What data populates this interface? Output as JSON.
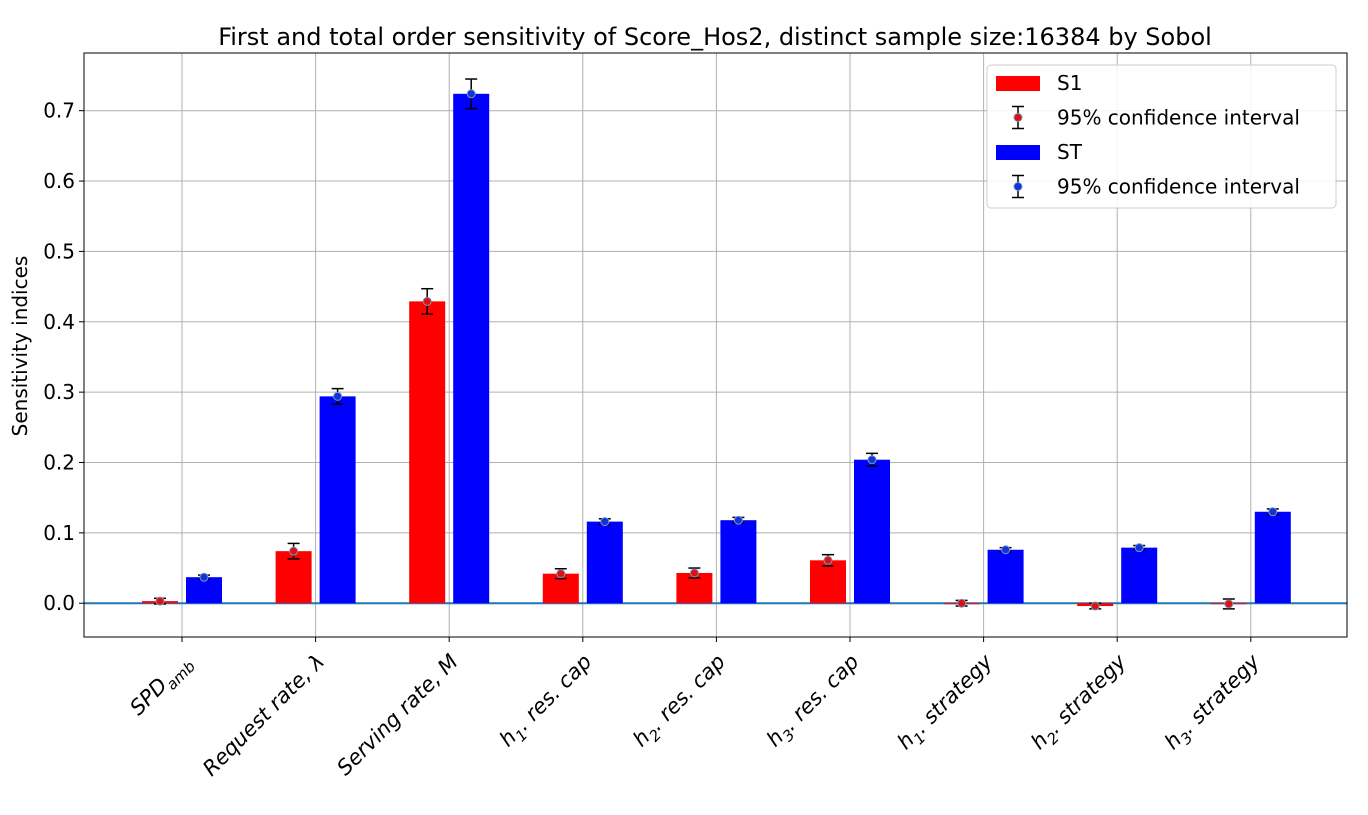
{
  "chart_data": {
    "type": "bar",
    "title": "First and total order sensitivity of Score_Hos2, distinct sample size:16384 by Sobol",
    "xlabel": "",
    "ylabel": "Sensitivity indices",
    "ylim": [
      -0.048,
      0.782
    ],
    "yticks": [
      0.0,
      0.1,
      0.2,
      0.3,
      0.4,
      0.5,
      0.6,
      0.7
    ],
    "ytick_labels": [
      "0.0",
      "0.1",
      "0.2",
      "0.3",
      "0.4",
      "0.5",
      "0.6",
      "0.7"
    ],
    "grid": true,
    "legend_position": "top-right",
    "categories": [
      {
        "main": "SPD",
        "sub": "amb",
        "post": ""
      },
      {
        "main": "Request rate, λ",
        "sub": "",
        "post": ""
      },
      {
        "main": "Serving rate, M",
        "sub": "",
        "post": ""
      },
      {
        "main": "h",
        "sub": "1",
        "post": ". res. cap"
      },
      {
        "main": "h",
        "sub": "2",
        "post": ". res. cap"
      },
      {
        "main": "h",
        "sub": "3",
        "post": ". res. cap"
      },
      {
        "main": "h",
        "sub": "1",
        "post": ". strategy"
      },
      {
        "main": "h",
        "sub": "2",
        "post": ". strategy"
      },
      {
        "main": "h",
        "sub": "3",
        "post": ". strategy"
      }
    ],
    "series": [
      {
        "name": "S1",
        "color": "#ff0000",
        "marker_color": "#dd1111",
        "values": [
          0.003,
          0.074,
          0.429,
          0.042,
          0.043,
          0.061,
          0.0,
          -0.004,
          -0.001
        ],
        "ci": [
          0.004,
          0.011,
          0.018,
          0.007,
          0.007,
          0.008,
          0.004,
          0.004,
          0.007
        ]
      },
      {
        "name": "ST",
        "color": "#0000ff",
        "marker_color": "#1133dd",
        "values": [
          0.037,
          0.294,
          0.724,
          0.116,
          0.118,
          0.204,
          0.076,
          0.079,
          0.13
        ],
        "ci": [
          0.003,
          0.011,
          0.021,
          0.004,
          0.004,
          0.009,
          0.003,
          0.003,
          0.004
        ]
      }
    ],
    "legend": [
      {
        "kind": "bar",
        "series": 0,
        "label": "S1"
      },
      {
        "kind": "errorbar",
        "series": 0,
        "label": "95% confidence interval"
      },
      {
        "kind": "bar",
        "series": 1,
        "label": "ST"
      },
      {
        "kind": "errorbar",
        "series": 1,
        "label": "95% confidence interval"
      }
    ],
    "zero_line_color": "#1f77b4",
    "grid_color": "#b0b0b0"
  }
}
